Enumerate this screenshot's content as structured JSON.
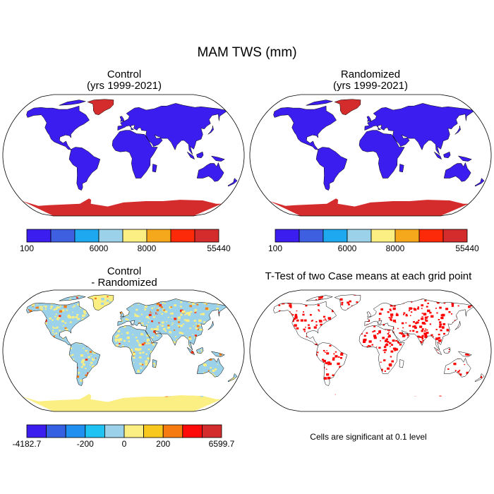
{
  "title": "MAM TWS (mm)",
  "panels": [
    {
      "id": "control",
      "title_lines": [
        "Control",
        "(yrs 1999-2021)"
      ]
    },
    {
      "id": "randomized",
      "title_lines": [
        "Randomized",
        "(yrs 1999-2021)"
      ]
    },
    {
      "id": "difference",
      "title_lines": [
        "Control",
        "- Randomized"
      ]
    },
    {
      "id": "ttest",
      "title_lines": [
        "T-Test of two Case means at each grid point"
      ]
    }
  ],
  "colorbars": {
    "tws": {
      "colors": [
        "#3b1df0",
        "#3d5fe0",
        "#1ea8f0",
        "#9bd2ea",
        "#fbee82",
        "#f6a81c",
        "#fd2a0a",
        "#d42c2c"
      ],
      "labels": [
        "100",
        "6000",
        "8000",
        "55440"
      ]
    },
    "diff": {
      "colors": [
        "#3b1df0",
        "#3560e2",
        "#1f8ff0",
        "#1fc3f3",
        "#9bd2ea",
        "#fbee82",
        "#f8c81e",
        "#f67c12",
        "#fd0a0a",
        "#d42c2c"
      ],
      "labels": [
        "-4182.7",
        "-200",
        "0",
        "200",
        "6599.7"
      ]
    }
  },
  "map_colors": {
    "land_low": "#3b1df0",
    "land_high": "#d42c2c",
    "diff_pos": "#fbee82",
    "diff_neg": "#9bd2ea",
    "diff_strong_pos": "#f67c12",
    "significant": "#ff0000",
    "ocean": "#ffffff",
    "coast": "#000000"
  },
  "note": "Cells are significant at 0.1 level"
}
